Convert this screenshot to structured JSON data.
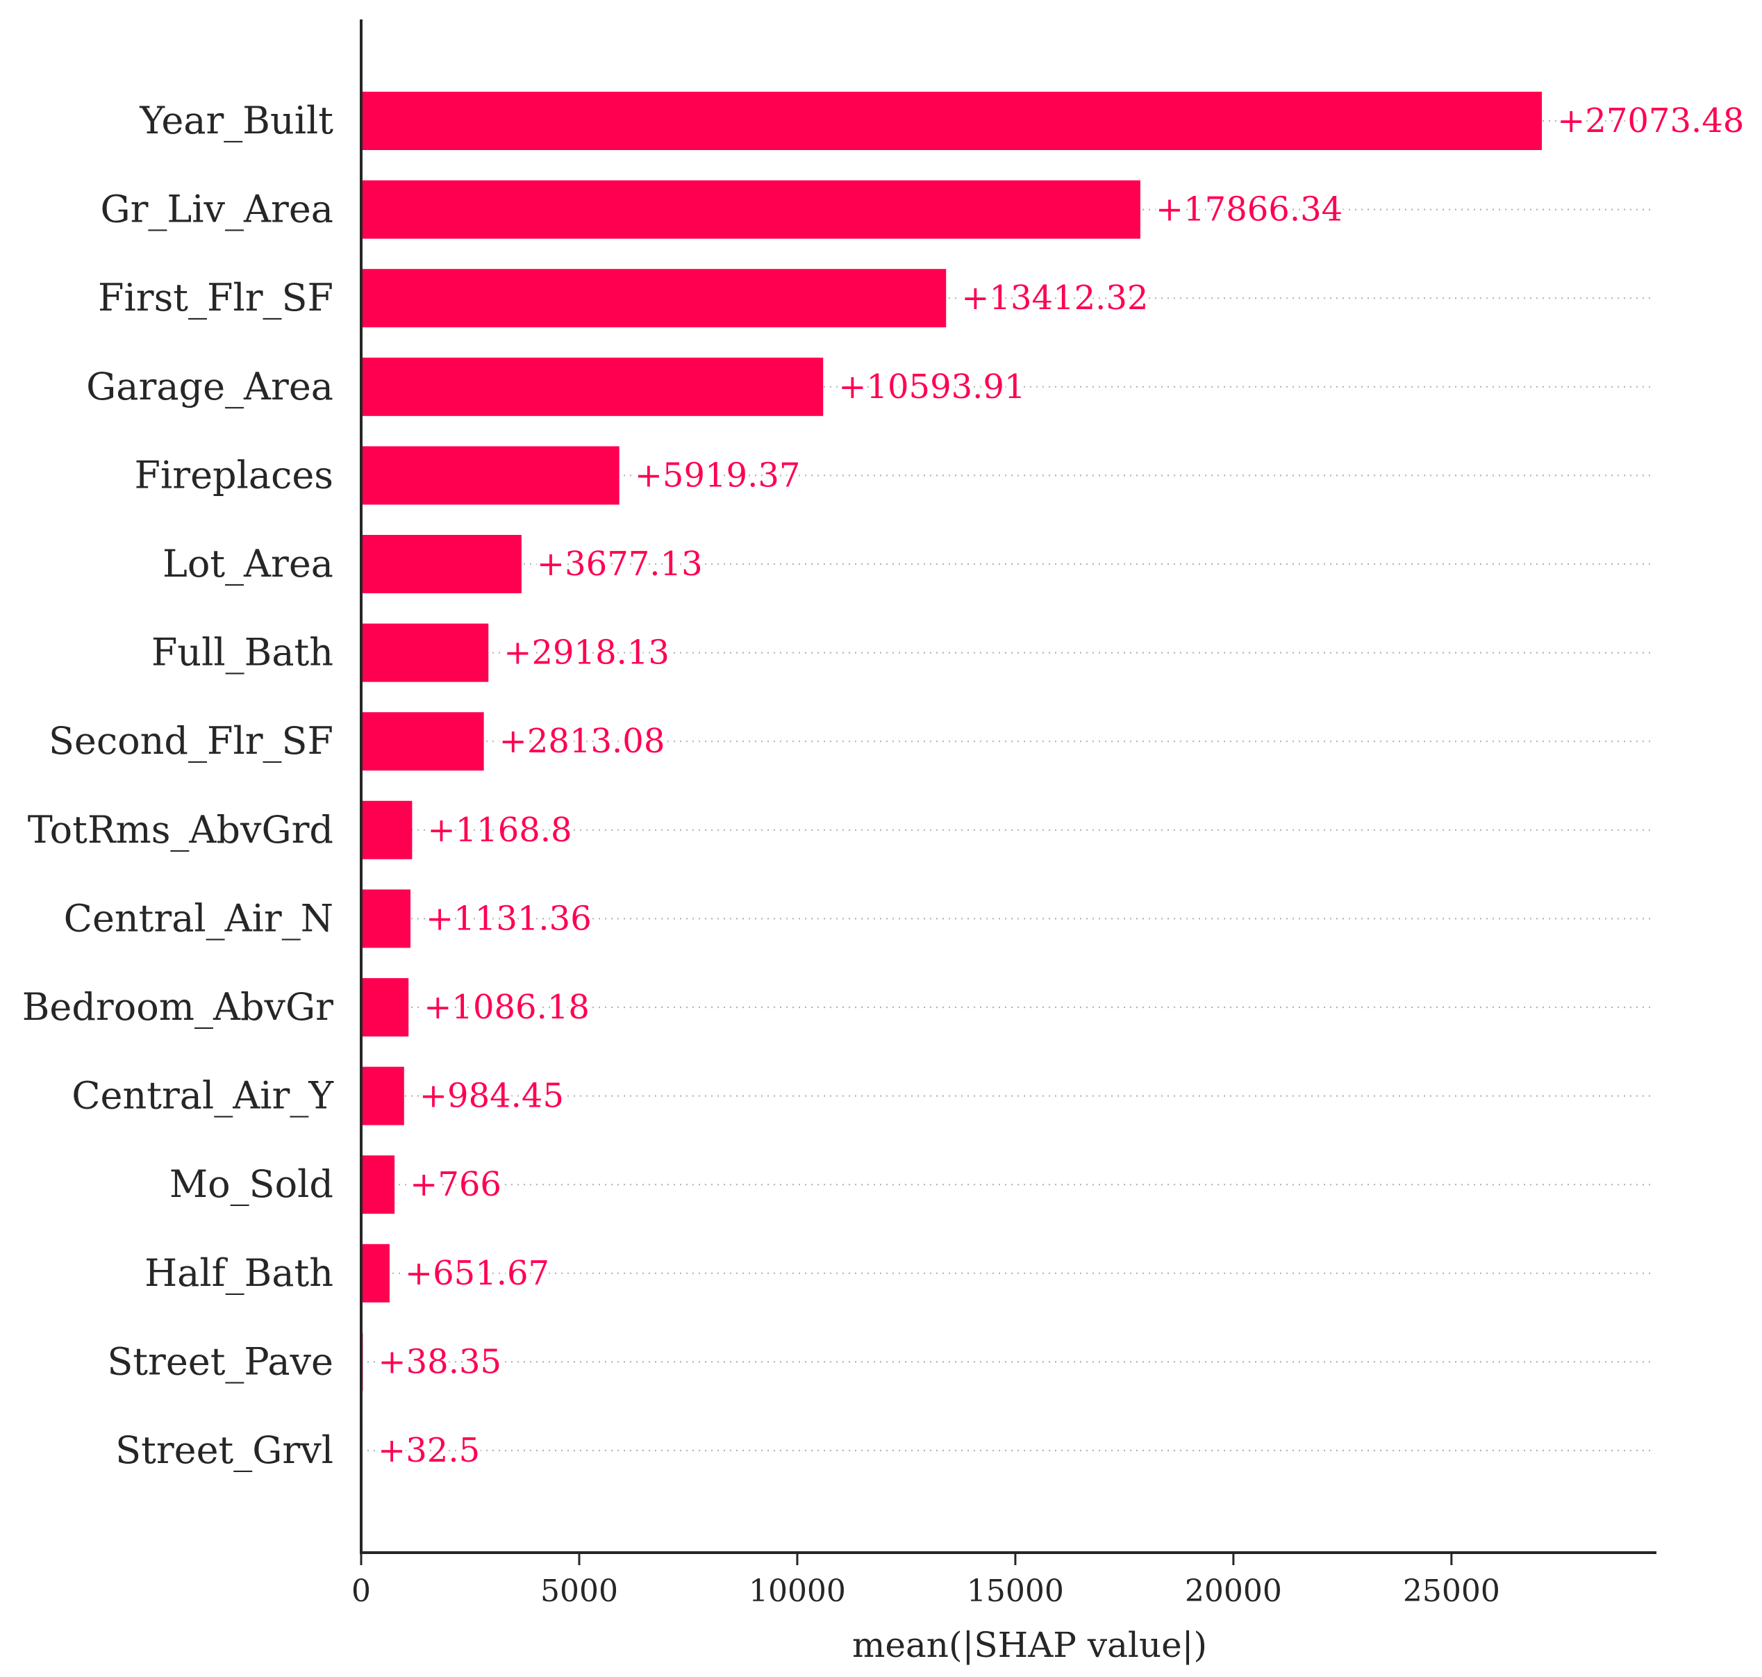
{
  "chart_data": {
    "type": "bar",
    "orientation": "horizontal",
    "xlabel": "mean(|SHAP value|)",
    "ylabel": "",
    "xlim": [
      0,
      29700
    ],
    "xticks": [
      0,
      5000,
      10000,
      15000,
      20000,
      25000
    ],
    "tick_labels": [
      "0",
      "5000",
      "10000",
      "15000",
      "20000",
      "25000"
    ],
    "bar_color": "#ff0051",
    "label_color": "#ff0051",
    "grid": "dotted row guides",
    "categories": [
      "Year_Built",
      "Gr_Liv_Area",
      "First_Flr_SF",
      "Garage_Area",
      "Fireplaces",
      "Lot_Area",
      "Full_Bath",
      "Second_Flr_SF",
      "TotRms_AbvGrd",
      "Central_Air_N",
      "Bedroom_AbvGr",
      "Central_Air_Y",
      "Mo_Sold",
      "Half_Bath",
      "Street_Pave",
      "Street_Grvl"
    ],
    "values": [
      27073.48,
      17866.34,
      13412.32,
      10593.91,
      5919.37,
      3677.13,
      2918.13,
      2813.08,
      1168.8,
      1131.36,
      1086.18,
      984.45,
      766,
      651.67,
      38.35,
      32.5
    ],
    "value_labels": [
      "+27073.48",
      "+17866.34",
      "+13412.32",
      "+10593.91",
      "+5919.37",
      "+3677.13",
      "+2918.13",
      "+2813.08",
      "+1168.8",
      "+1131.36",
      "+1086.18",
      "+984.45",
      "+766",
      "+651.67",
      "+38.35",
      "+32.5"
    ]
  }
}
